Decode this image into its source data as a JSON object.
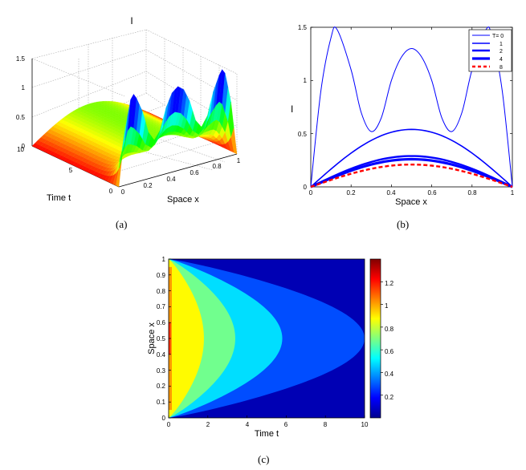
{
  "chart_data": [
    {
      "panel": "(a)",
      "type": "surface3d",
      "title": "I",
      "xlabel": "Space x",
      "ylabel": "Time t",
      "zlabel": "",
      "x_ticks": [
        "0",
        "0.2",
        "0.4",
        "0.6",
        "0.8",
        "1"
      ],
      "y_ticks": [
        "0",
        "5",
        "10"
      ],
      "z_ticks": [
        "0",
        "0.5",
        "1",
        "1.5"
      ],
      "xlim": [
        0,
        1
      ],
      "ylim": [
        0,
        10
      ],
      "zlim": [
        0,
        1.5
      ],
      "grid": true,
      "colormap": "hsv",
      "initial_profile": "I(x,0) with peaks ~1.48 at x=0.13, 0.87 and ~1.3 at x=0.5",
      "peak_height_t0": 1.48
    },
    {
      "panel": "(b)",
      "type": "line",
      "title": "I",
      "xlabel": "Space x",
      "ylabel": "",
      "xlim": [
        0,
        1
      ],
      "ylim": [
        0,
        1.5
      ],
      "x_ticks": [
        "0",
        "0.2",
        "0.4",
        "0.6",
        "0.8",
        "1"
      ],
      "y_ticks": [
        "0",
        "0.5",
        "1",
        "1.5"
      ],
      "legend_position": "top-right",
      "legend_title": "T= 0",
      "series": [
        {
          "name": "T= 0",
          "color": "#0000ff",
          "style": "solid",
          "x": [
            0,
            0.05,
            0.1,
            0.13,
            0.2,
            0.25,
            0.3,
            0.35,
            0.4,
            0.45,
            0.5,
            0.55,
            0.6,
            0.65,
            0.7,
            0.75,
            0.8,
            0.87,
            0.9,
            0.95,
            1
          ],
          "y": [
            0,
            0.9,
            1.4,
            1.48,
            1.1,
            0.7,
            0.52,
            0.65,
            1.0,
            1.22,
            1.3,
            1.22,
            1.0,
            0.65,
            0.52,
            0.7,
            1.1,
            1.48,
            1.4,
            0.9,
            0
          ]
        },
        {
          "name": "1",
          "color": "#0000ff",
          "style": "solid",
          "peak": 0.54
        },
        {
          "name": "2",
          "color": "#0000ff",
          "style": "solid",
          "peak": 0.29
        },
        {
          "name": "4",
          "color": "#0000ff",
          "style": "solid",
          "peak": 0.26
        },
        {
          "name": "8",
          "color": "#ff0000",
          "style": "dashed",
          "peak": 0.21
        }
      ]
    },
    {
      "panel": "(c)",
      "type": "contour",
      "xlabel": "Time t",
      "ylabel": "Space x",
      "xlim": [
        0,
        10
      ],
      "ylim": [
        0,
        1
      ],
      "x_ticks": [
        "0",
        "2",
        "4",
        "6",
        "8",
        "10"
      ],
      "y_ticks": [
        "0",
        "0.1",
        "0.2",
        "0.3",
        "0.4",
        "0.5",
        "0.6",
        "0.7",
        "0.8",
        "0.9",
        "1"
      ],
      "colorbar_ticks": [
        "0.2",
        "0.4",
        "0.6",
        "0.8",
        "1",
        "1.2"
      ],
      "colorbar_range": [
        0,
        1.4
      ],
      "colormap": "jet",
      "levels": [
        {
          "upper": 0.2,
          "t_extent": 10.0
        },
        {
          "upper": 0.4,
          "t_extent": 5.8
        },
        {
          "upper": 0.6,
          "t_extent": 3.4
        },
        {
          "upper": 0.8,
          "t_extent": 1.8
        }
      ]
    }
  ],
  "captions": {
    "a": "(a)",
    "b": "(b)",
    "c": "(c)"
  }
}
